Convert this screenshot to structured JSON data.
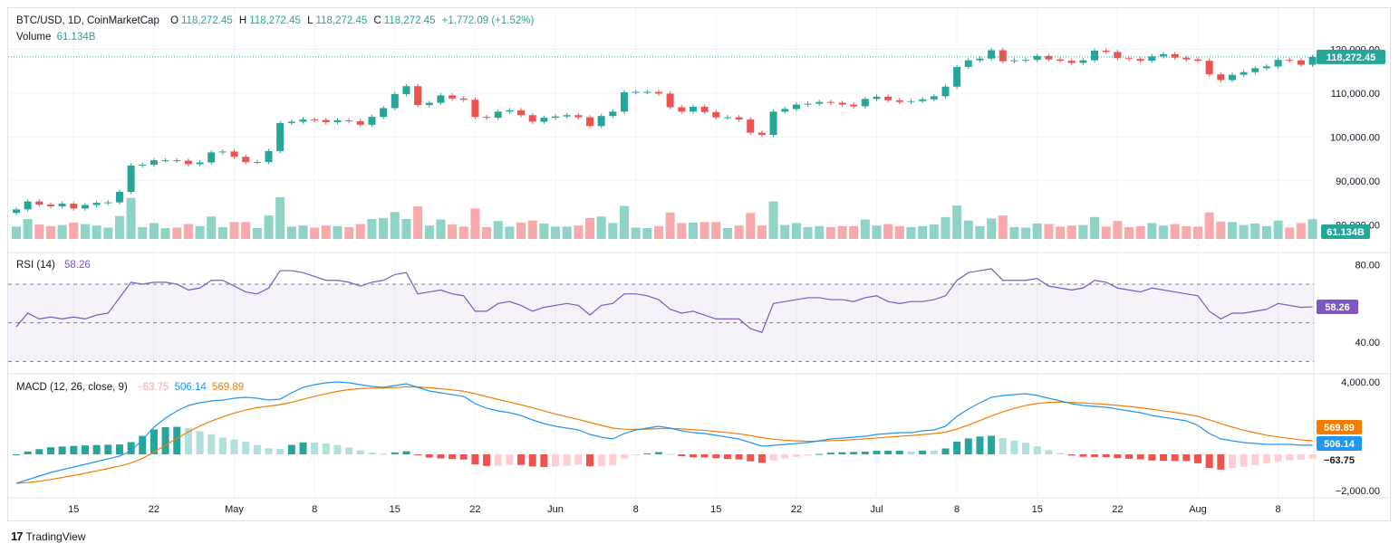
{
  "header": {
    "symbol": "BTC/USD, 1D, CoinMarketCap",
    "o_label": "O",
    "o_value": "118,272.45",
    "h_label": "H",
    "h_value": "118,272.45",
    "l_label": "L",
    "l_value": "118,272.45",
    "c_label": "C",
    "c_value": "118,272.45",
    "change": "+1,772.09 (+1.52%)",
    "volume_label": "Volume",
    "volume_value": "61.134B"
  },
  "rsi_legend": {
    "label": "RSI (14)",
    "value": "58.26"
  },
  "macd_legend": {
    "label": "MACD (12, 26, close, 9)",
    "hist": "−63.75",
    "macd": "506.14",
    "signal": "569.89"
  },
  "colors": {
    "up": "#26a69a",
    "down": "#ef5350",
    "up_vol": "#8fd3c6",
    "down_vol": "#f7a9ab",
    "rsi": "#7e57c2",
    "macd": "#2196f3",
    "signal": "#f57c00"
  },
  "branding": {
    "name": "TradingView",
    "icon": "tradingview-logo-icon"
  },
  "chart_data": [
    {
      "type": "candlestick",
      "title": "BTC/USD, 1D, CoinMarketCap",
      "ylim": [
        78000,
        123000
      ],
      "y_ticks": [
        "120,000.00",
        "110,000.00",
        "100,000.00",
        "90,000.00",
        "80,000.00"
      ],
      "y_tick_values": [
        120000,
        110000,
        100000,
        90000,
        80000
      ],
      "x_ticks": [
        "15",
        "22",
        "May",
        "8",
        "15",
        "22",
        "Jun",
        "8",
        "15",
        "22",
        "Jul",
        "8",
        "15",
        "22",
        "Aug",
        "8"
      ],
      "x_tick_index": [
        5,
        12,
        19,
        26,
        33,
        40,
        47,
        54,
        61,
        68,
        75,
        82,
        89,
        96,
        103,
        110
      ],
      "last_price": 118272.45,
      "last_price_label": "118,272.45",
      "volume_label": "61.134B",
      "close": [
        83500,
        85300,
        84600,
        84200,
        84800,
        83700,
        84500,
        85000,
        85100,
        87500,
        93500,
        93700,
        94700,
        94700,
        94600,
        93800,
        94200,
        96500,
        96700,
        95500,
        94300,
        94300,
        96800,
        103200,
        103500,
        104000,
        103900,
        103400,
        103800,
        103600,
        102800,
        104600,
        106600,
        109800,
        111600,
        107300,
        107800,
        109500,
        108800,
        108500,
        104600,
        104400,
        105800,
        106100,
        105000,
        103500,
        104400,
        104700,
        105000,
        104500,
        102500,
        104800,
        105800,
        110200,
        110300,
        110300,
        109900,
        106800,
        105800,
        106900,
        105700,
        104500,
        104500,
        104000,
        101000,
        100500,
        105800,
        106400,
        107400,
        107600,
        108000,
        107800,
        107400,
        107000,
        108700,
        109200,
        108400,
        108000,
        108200,
        108600,
        109300,
        111500,
        116000,
        117500,
        117900,
        119800,
        117300,
        117500,
        117600,
        118500,
        117700,
        117400,
        116900,
        117500,
        119700,
        119400,
        118000,
        117800,
        117400,
        118400,
        118900,
        118100,
        117700,
        117400,
        114300,
        113000,
        114200,
        114800,
        115700,
        116100,
        117600,
        117500,
        116500,
        118272
      ]
    },
    {
      "type": "line",
      "title": "RSI (14)",
      "ylim": [
        25,
        85
      ],
      "y_ticks": [
        "80.00",
        "40.00"
      ],
      "y_tick_values": [
        80,
        40
      ],
      "bands": [
        70,
        50,
        30
      ],
      "last_value": 58.26,
      "values": [
        48,
        55,
        52,
        53,
        52,
        53,
        52,
        54,
        55,
        63,
        71,
        70,
        71,
        71,
        70,
        67,
        68,
        72,
        72,
        69,
        66,
        65,
        68,
        77,
        77,
        76,
        74,
        72,
        72,
        71,
        69,
        71,
        72,
        75,
        76,
        65,
        66,
        67,
        65,
        64,
        56,
        56,
        60,
        61,
        59,
        56,
        58,
        59,
        60,
        59,
        54,
        59,
        60,
        65,
        65,
        64,
        62,
        57,
        55,
        56,
        54,
        52,
        52,
        52,
        47,
        45,
        60,
        61,
        62,
        63,
        63,
        62,
        62,
        61,
        63,
        64,
        61,
        60,
        61,
        61,
        62,
        64,
        72,
        76,
        77,
        78,
        72,
        72,
        72,
        73,
        69,
        68,
        67,
        68,
        72,
        71,
        68,
        67,
        66,
        68,
        67,
        66,
        65,
        64,
        56,
        52,
        55,
        55,
        56,
        57,
        60,
        59,
        58,
        58.26
      ]
    },
    {
      "type": "bar",
      "title": "MACD (12, 26, close, 9)",
      "ylim": [
        -2300,
        4400
      ],
      "y_ticks": [
        "4,000.00",
        "−2,000.00"
      ],
      "y_tick_values": [
        4000,
        -2000
      ],
      "macd": [
        -1600,
        -1400,
        -1200,
        -1000,
        -850,
        -700,
        -550,
        -400,
        -250,
        -100,
        200,
        800,
        1500,
        2000,
        2400,
        2700,
        2850,
        2950,
        3000,
        3100,
        3150,
        3100,
        3000,
        3050,
        3400,
        3700,
        3850,
        3950,
        4000,
        3950,
        3850,
        3750,
        3700,
        3800,
        3900,
        3700,
        3500,
        3400,
        3300,
        3200,
        2800,
        2550,
        2400,
        2300,
        2150,
        1900,
        1700,
        1550,
        1450,
        1350,
        1100,
        950,
        850,
        1150,
        1350,
        1450,
        1550,
        1450,
        1300,
        1200,
        1150,
        1050,
        950,
        850,
        650,
        450,
        500,
        550,
        600,
        650,
        750,
        850,
        900,
        950,
        1000,
        1100,
        1150,
        1200,
        1200,
        1300,
        1350,
        1550,
        2100,
        2500,
        2850,
        3150,
        3250,
        3300,
        3350,
        3250,
        3100,
        2950,
        2800,
        2700,
        2650,
        2600,
        2500,
        2400,
        2300,
        2150,
        2050,
        1950,
        1850,
        1600,
        1150,
        850,
        750,
        650,
        600,
        550,
        550,
        550,
        506.14,
        506.14
      ]
    }
  ]
}
